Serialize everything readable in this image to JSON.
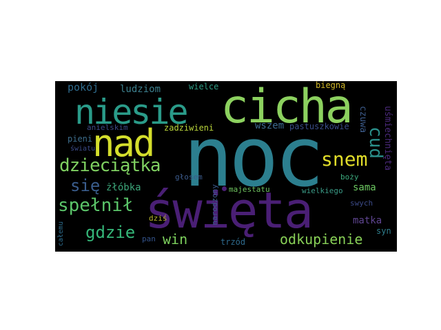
{
  "wordcloud": {
    "background": "#000000",
    "words": {
      "noc": {
        "text": "noc",
        "color": "#2c7f8f"
      },
      "cicha": {
        "text": "cicha",
        "color": "#8cd15f"
      },
      "niesie": {
        "text": "niesie",
        "color": "#2a9b89"
      },
      "swieta": {
        "text": "święta",
        "color": "#4a1f75"
      },
      "nad": {
        "text": "nad",
        "color": "#d4de2c"
      },
      "dzieciatka": {
        "text": "dzieciątka",
        "color": "#7fd061"
      },
      "snem": {
        "text": "snem",
        "color": "#e1dd2a"
      },
      "spelnil": {
        "text": "spełnił",
        "color": "#5bc56a"
      },
      "gdzie": {
        "text": "gdzie",
        "color": "#35b779"
      },
      "sie": {
        "text": "się",
        "color": "#3a5d8d"
      },
      "cud": {
        "text": "cud",
        "color": "#2a8f8a"
      },
      "win": {
        "text": "win",
        "color": "#7dd05d"
      },
      "odkupienie": {
        "text": "odkupienie",
        "color": "#88d057"
      },
      "pokoj": {
        "text": "pokój",
        "color": "#2f6c8e"
      },
      "ludziom": {
        "text": "ludziom",
        "color": "#3c7f8d"
      },
      "wielce": {
        "text": "wielce",
        "color": "#2e9c84"
      },
      "biegna": {
        "text": "biegną",
        "color": "#d2b82a"
      },
      "usmiechnieta": {
        "text": "uśmiechnięta",
        "color": "#4b2a7c"
      },
      "czuwa": {
        "text": "czuwa",
        "color": "#3d5c8c"
      },
      "wszem": {
        "text": "wszem",
        "color": "#3d6b8f"
      },
      "pastuszkowie": {
        "text": "pastuszkowie",
        "color": "#3a4d88"
      },
      "zadziwieni": {
        "text": "zadziwieni",
        "color": "#b9d43b"
      },
      "anielskim": {
        "text": "anielskim",
        "color": "#3e4a87"
      },
      "pieni": {
        "text": "pieni",
        "color": "#3e6f8e"
      },
      "swiatu": {
        "text": "światu",
        "color": "#3b4b88"
      },
      "glosem": {
        "text": "głosem",
        "color": "#3c5b8c"
      },
      "zlobka": {
        "text": "żłóbka",
        "color": "#3ca579"
      },
      "majestatu": {
        "text": "majestatu",
        "color": "#6fc460"
      },
      "wielkiego": {
        "text": "wielkiego",
        "color": "#3a9a86"
      },
      "bozy": {
        "text": "boży",
        "color": "#3ba97c"
      },
      "sama": {
        "text": "sama",
        "color": "#6dc962"
      },
      "swych": {
        "text": "swych",
        "color": "#3b4a87"
      },
      "matka": {
        "text": "matka",
        "color": "#5f4591"
      },
      "syn": {
        "text": "syn",
        "color": "#2f7e8d"
      },
      "narodzony": {
        "text": "narodzony",
        "color": "#3c5a8c"
      },
      "dzis": {
        "text": "dziś",
        "color": "#b7b52c"
      },
      "pan": {
        "text": "pan",
        "color": "#34538b"
      },
      "trzod": {
        "text": "trzód",
        "color": "#2e6a8d"
      },
      "calemu": {
        "text": "całemu",
        "color": "#2d6c8d"
      }
    }
  }
}
